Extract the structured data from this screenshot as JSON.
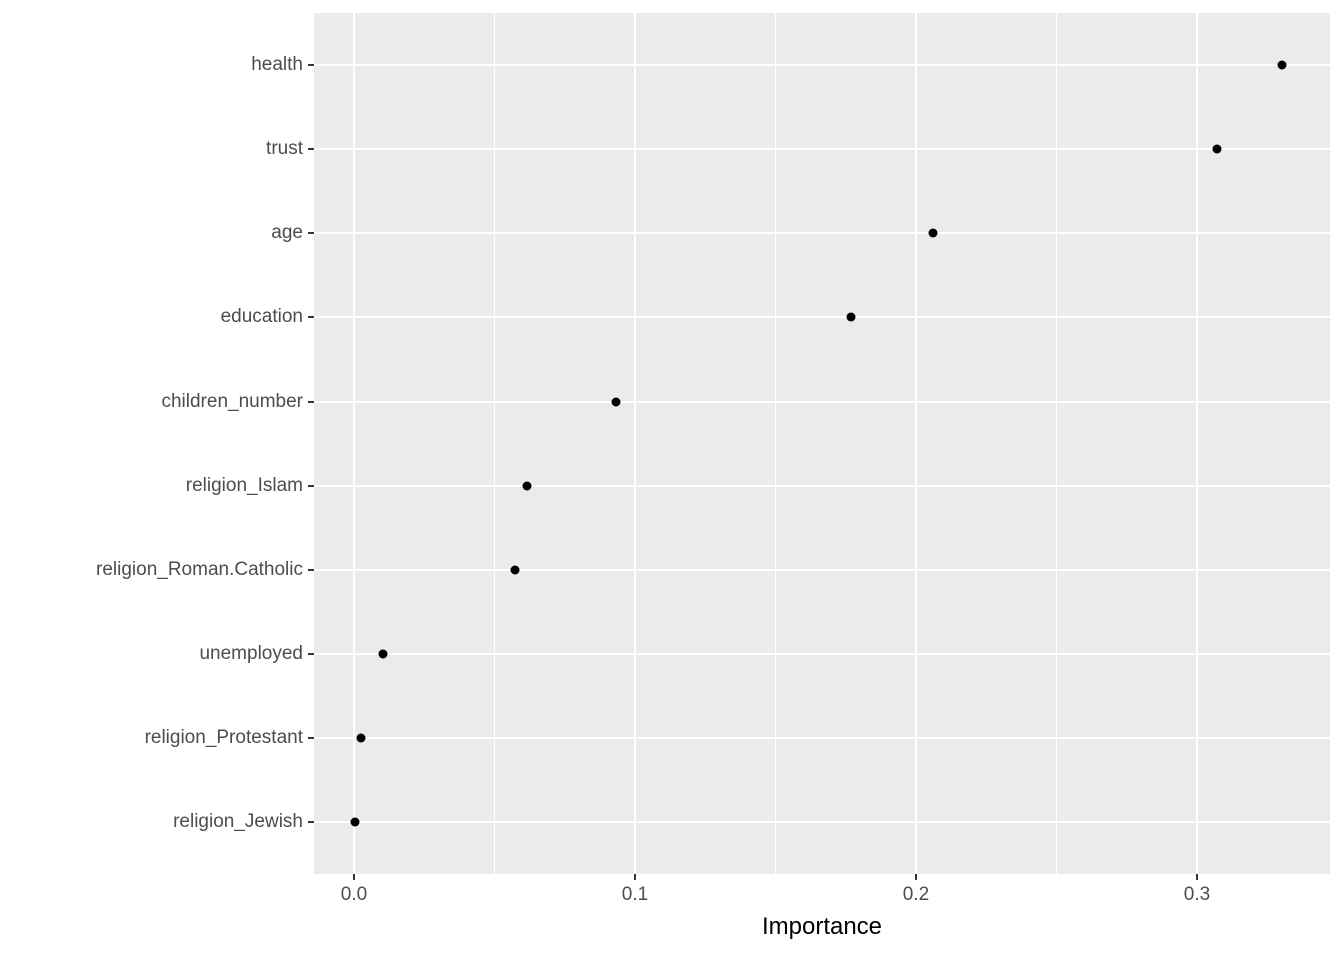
{
  "chart_data": {
    "type": "scatter",
    "subtype": "cleveland-dot-plot",
    "title": "",
    "xlabel": "Importance",
    "ylabel": "",
    "categories": [
      "health",
      "trust",
      "age",
      "education",
      "children_number",
      "religion_Islam",
      "religion_Roman.Catholic",
      "unemployed",
      "religion_Protestant",
      "religion_Jewish"
    ],
    "values": [
      0.3303,
      0.3072,
      0.2061,
      0.1768,
      0.0931,
      0.0615,
      0.0572,
      0.0104,
      0.0026,
      0.0004
    ],
    "x_ticks": [
      0.0,
      0.1,
      0.2,
      0.3
    ],
    "x_tick_labels": [
      "0.0",
      "0.1",
      "0.2",
      "0.3"
    ],
    "x_minor_ticks": [
      0.05,
      0.15,
      0.25
    ],
    "xlim": [
      -0.0142,
      0.3473
    ],
    "grid": "white major gridlines on x and y, white minor gridlines on x only",
    "legend_position": "none",
    "point_color": "#000000",
    "colors": {
      "panel_background": "#EBEBEB",
      "gridline": "#FFFFFF",
      "point": "#000000",
      "axis_text": "#4D4D4D",
      "axis_title": "#000000",
      "tick_mark": "#333333"
    }
  }
}
